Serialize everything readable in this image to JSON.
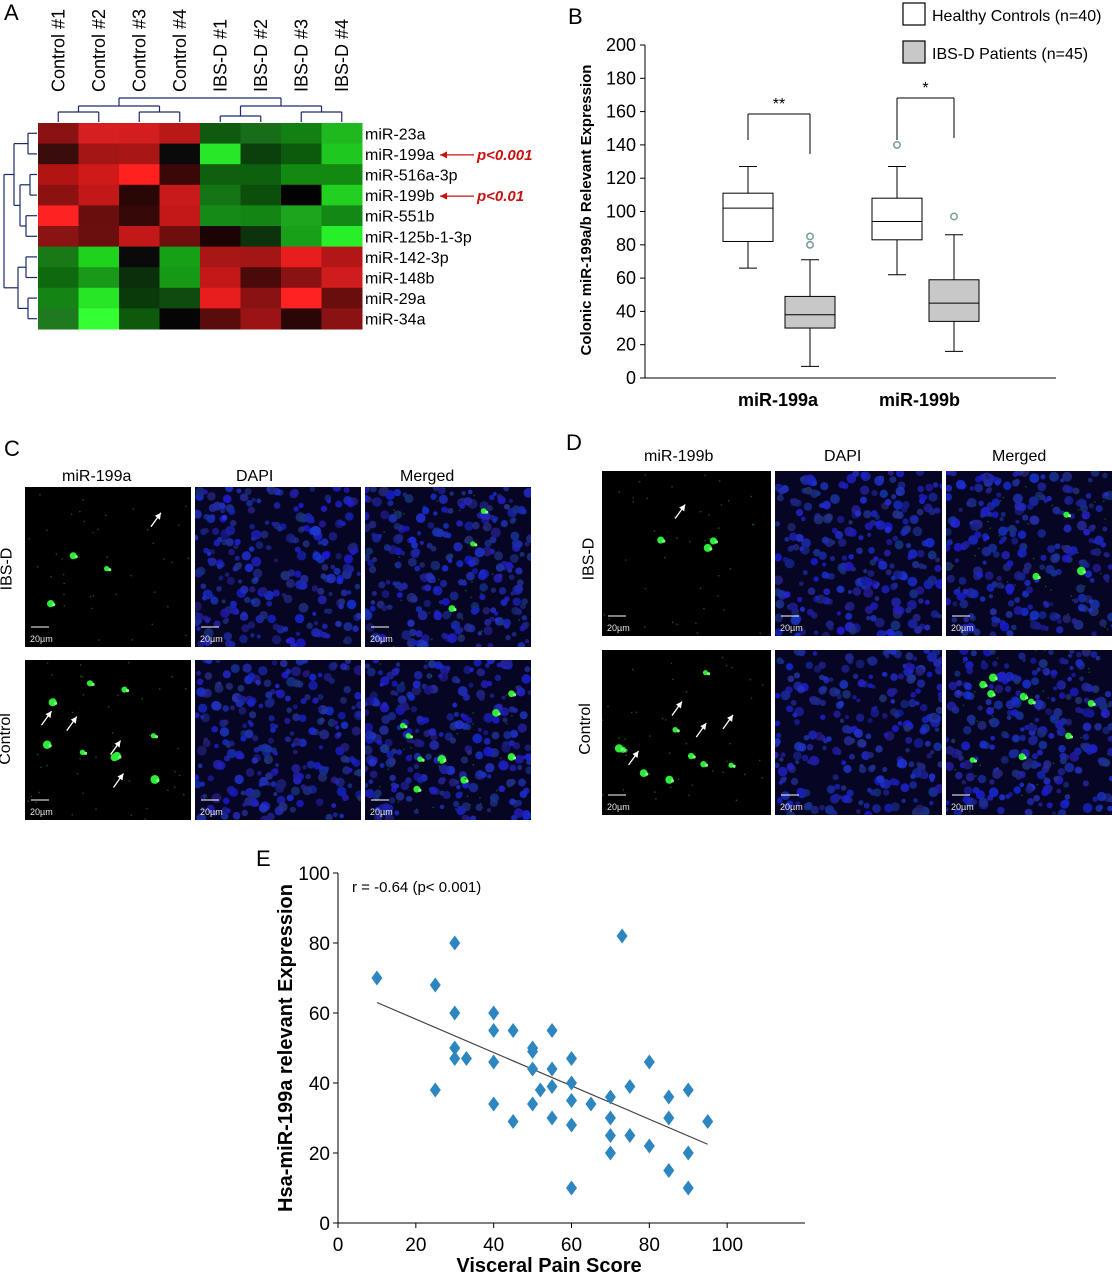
{
  "panelA": {
    "label": "A",
    "columns": [
      "Control #1",
      "Control #2",
      "Control #3",
      "Control #4",
      "IBS-D #1",
      "IBS-D #2",
      "IBS-D #3",
      "IBS-D #4"
    ],
    "rows": [
      "miR-23a",
      "miR-199a",
      "miR-516a-3p",
      "miR-199b",
      "miR-551b",
      "miR-125b-1-3p",
      "miR-142-3p",
      "miR-148b",
      "miR-29a",
      "miR-34a"
    ],
    "heat_colors": [
      [
        "#8a1212",
        "#d81f1f",
        "#d41d1d",
        "#b81818",
        "#0f5a0f",
        "#186e18",
        "#128012",
        "#1fb81f"
      ],
      [
        "#3a0c0c",
        "#a41616",
        "#a81616",
        "#0a0a0a",
        "#28e628",
        "#0b3f0b",
        "#0c5a0c",
        "#1ec81e"
      ],
      [
        "#b21414",
        "#d01919",
        "#ff2020",
        "#3a0808",
        "#0f5f0f",
        "#0d600d",
        "#128a12",
        "#128a12"
      ],
      [
        "#8c1212",
        "#c21818",
        "#2a0707",
        "#c81a1a",
        "#137513",
        "#0b4f0b",
        "#020202",
        "#22d022"
      ],
      [
        "#ff2222",
        "#6a0d0d",
        "#360808",
        "#c21818",
        "#168a16",
        "#138513",
        "#1ea51e",
        "#148814"
      ],
      [
        "#8a1414",
        "#6a0e0e",
        "#c21818",
        "#6e0e0e",
        "#1c0404",
        "#0c330c",
        "#18a018",
        "#28f028"
      ],
      [
        "#177a17",
        "#1ed21e",
        "#0a0a0a",
        "#16a016",
        "#a81616",
        "#a41616",
        "#e81e1e",
        "#b21616"
      ],
      [
        "#0f6a0f",
        "#1a981a",
        "#0b2e0b",
        "#169a16",
        "#c21818",
        "#4a0a0a",
        "#8a1212",
        "#d01c1c"
      ],
      [
        "#148414",
        "#26e626",
        "#0a3a0a",
        "#0f4a0f",
        "#e81e1e",
        "#8a1212",
        "#ff2222",
        "#6a0d0d"
      ],
      [
        "#1f7a1f",
        "#33ff33",
        "#0d5a0d",
        "#050505",
        "#5a0b0b",
        "#9a1414",
        "#2a0606",
        "#8a1212"
      ]
    ],
    "annotations": [
      {
        "row": "miR-199a",
        "text": "p<0.001"
      },
      {
        "row": "miR-199b",
        "text": "p<0.01"
      }
    ],
    "annotation_color": "#cc1111"
  },
  "panelB": {
    "label": "B",
    "chart_data": {
      "type": "box",
      "ylabel": "Colonic miR-199a/b Relevant  Expression",
      "ylim": [
        0,
        200
      ],
      "yticks": [
        0,
        20,
        40,
        60,
        80,
        100,
        120,
        140,
        160,
        180,
        200
      ],
      "categories": [
        "miR-199a",
        "miR-199b"
      ],
      "legend": [
        {
          "name": "Healthy Controls (n=40)",
          "fill": "#ffffff"
        },
        {
          "name": "IBS-D Patients  (n=45)",
          "fill": "#c8c8c8"
        }
      ],
      "boxes": [
        {
          "category": "miR-199a",
          "group": "Healthy Controls",
          "min": 66,
          "q1": 82,
          "median": 102,
          "q3": 111,
          "max": 127,
          "outliers": []
        },
        {
          "category": "miR-199a",
          "group": "IBS-D Patients",
          "min": 7,
          "q1": 30,
          "median": 38,
          "q3": 49,
          "max": 71,
          "outliers": [
            80,
            85
          ]
        },
        {
          "category": "miR-199b",
          "group": "Healthy Controls",
          "min": 62,
          "q1": 83,
          "median": 94,
          "q3": 108,
          "max": 127,
          "outliers": [
            140
          ]
        },
        {
          "category": "miR-199b",
          "group": "IBS-D Patients",
          "min": 16,
          "q1": 34,
          "median": 45,
          "q3": 59,
          "max": 86,
          "outliers": [
            97
          ]
        }
      ],
      "significance": [
        {
          "category": "miR-199a",
          "text": "**"
        },
        {
          "category": "miR-199b",
          "text": "*"
        }
      ]
    }
  },
  "panelC": {
    "label": "C",
    "col_labels": [
      "miR-199a",
      "DAPI",
      "Merged"
    ],
    "row_labels": [
      "IBS-D",
      "Control"
    ],
    "scale": "20µm"
  },
  "panelD": {
    "label": "D",
    "col_labels": [
      "miR-199b",
      "DAPI",
      "Merged"
    ],
    "row_labels": [
      "IBS-D",
      "Control"
    ],
    "scale": "20µm"
  },
  "panelE": {
    "label": "E",
    "chart_data": {
      "type": "scatter",
      "xlabel": "Visceral Pain Score",
      "ylabel": "Hsa-miR-199a relevant Expression",
      "xlim": [
        0,
        120
      ],
      "ylim": [
        0,
        100
      ],
      "xticks": [
        0,
        20,
        40,
        60,
        80,
        100
      ],
      "yticks": [
        0,
        20,
        40,
        60,
        80,
        100
      ],
      "annotation": "r = -0.64 (p< 0.001)",
      "marker_color": "#2e86c1",
      "trendline": {
        "x": [
          10,
          95
        ],
        "y": [
          63,
          22.5
        ]
      },
      "points": [
        [
          10,
          70
        ],
        [
          25,
          68
        ],
        [
          25,
          38
        ],
        [
          30,
          80
        ],
        [
          30,
          60
        ],
        [
          30,
          50
        ],
        [
          30,
          47
        ],
        [
          33,
          47
        ],
        [
          40,
          60
        ],
        [
          40,
          55
        ],
        [
          40,
          46
        ],
        [
          40,
          34
        ],
        [
          45,
          55
        ],
        [
          45,
          29
        ],
        [
          50,
          50
        ],
        [
          50,
          49
        ],
        [
          50,
          44
        ],
        [
          50,
          34
        ],
        [
          52,
          38
        ],
        [
          55,
          55
        ],
        [
          55,
          44
        ],
        [
          55,
          39
        ],
        [
          55,
          30
        ],
        [
          60,
          47
        ],
        [
          60,
          40
        ],
        [
          60,
          35
        ],
        [
          60,
          28
        ],
        [
          60,
          10
        ],
        [
          65,
          34
        ],
        [
          70,
          36
        ],
        [
          70,
          30
        ],
        [
          70,
          25
        ],
        [
          70,
          20
        ],
        [
          73,
          82
        ],
        [
          75,
          39
        ],
        [
          75,
          25
        ],
        [
          80,
          46
        ],
        [
          80,
          22
        ],
        [
          85,
          36
        ],
        [
          85,
          30
        ],
        [
          85,
          15
        ],
        [
          90,
          38
        ],
        [
          90,
          20
        ],
        [
          90,
          10
        ],
        [
          95,
          29
        ]
      ]
    }
  }
}
